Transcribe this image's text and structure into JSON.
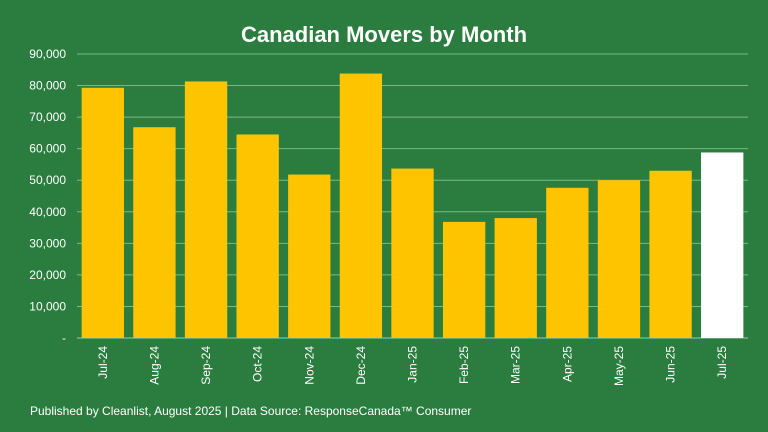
{
  "chart_data": {
    "type": "bar",
    "title": "Canadian Movers by Month",
    "xlabel": "",
    "ylabel": "",
    "categories": [
      "Jul-24",
      "Aug-24",
      "Sep-24",
      "Oct-24",
      "Nov-24",
      "Dec-24",
      "Jan-25",
      "Feb-25",
      "Mar-25",
      "Apr-25",
      "May-25",
      "Jun-25",
      "Jul-25"
    ],
    "values": [
      79300,
      66800,
      81300,
      64500,
      51800,
      83800,
      53700,
      36800,
      38000,
      47600,
      50000,
      53000,
      58800
    ],
    "ylim": [
      0,
      90000
    ],
    "yticks": [
      "-",
      "10,000",
      "20,000",
      "30,000",
      "40,000",
      "50,000",
      "60,000",
      "70,000",
      "80,000",
      "90,000"
    ],
    "grid": true,
    "legend": "none",
    "highlight_index": 12,
    "colors": {
      "background": "#2a7d3e",
      "bar": "#ffc400",
      "highlight_bar": "#ffffff",
      "gridline": "#7fb58a",
      "text": "#ffffff"
    }
  },
  "footer": "Published by Cleanlist, August 2025 | Data Source: ResponseCanada™ Consumer"
}
